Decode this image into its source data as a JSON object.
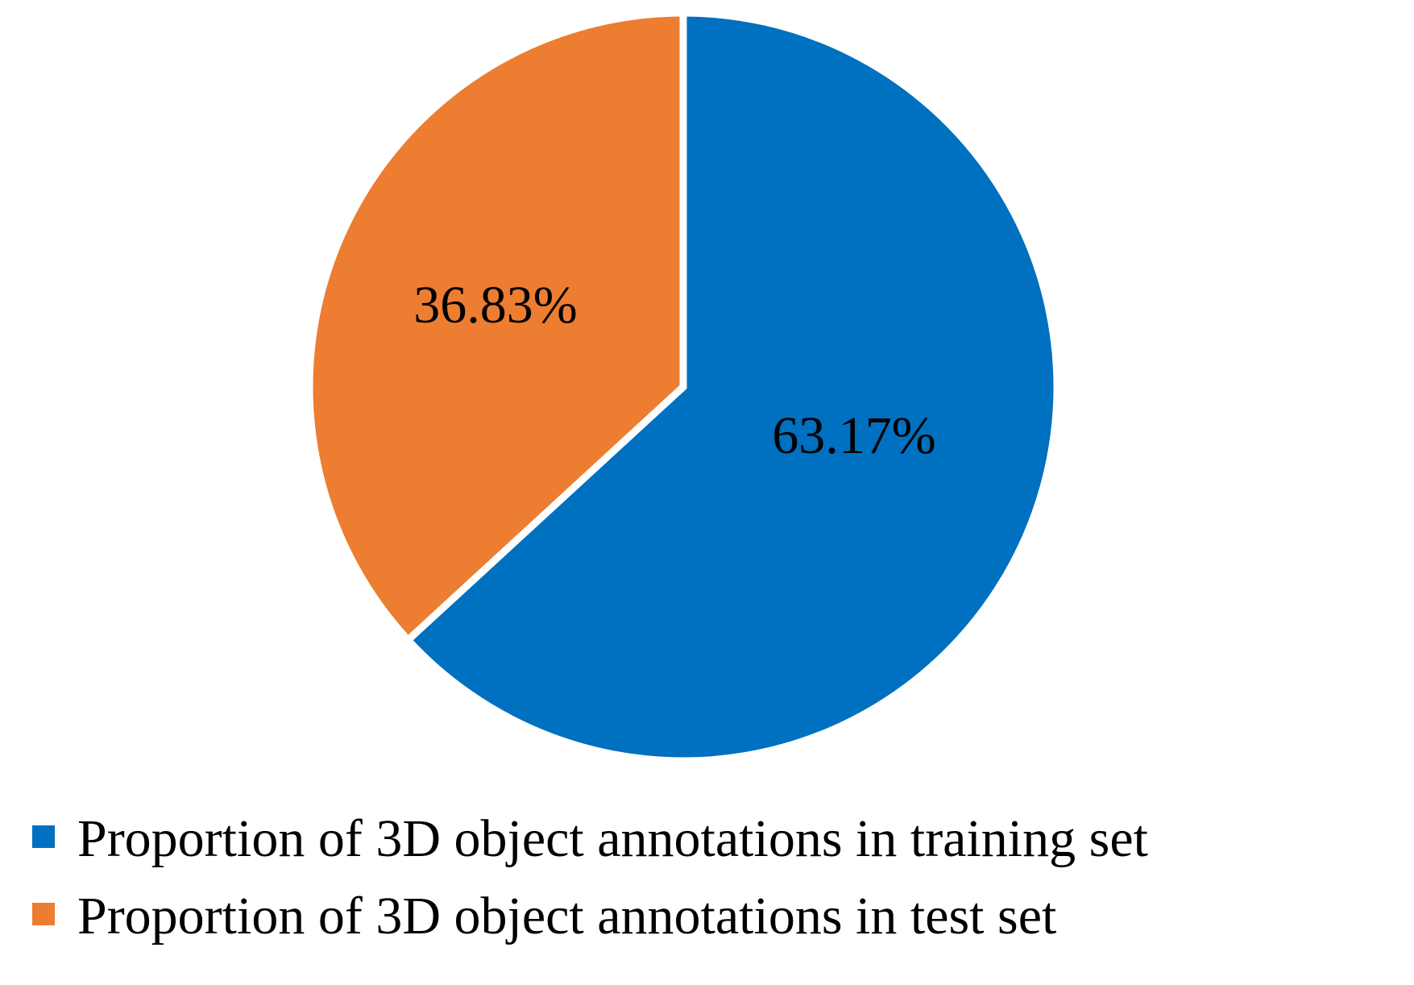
{
  "chart_data": {
    "type": "pie",
    "title": "",
    "legend_position": "bottom",
    "start_angle_deg": 0,
    "direction": "clockwise",
    "slices": [
      {
        "name": "Proportion of 3D object annotations in training set",
        "value": 63.17,
        "label": "63.17%",
        "color": "#0070C0"
      },
      {
        "name": "Proportion of 3D object annotations in test set",
        "value": 36.83,
        "label": "36.83%",
        "color": "#ED7D31"
      }
    ]
  }
}
